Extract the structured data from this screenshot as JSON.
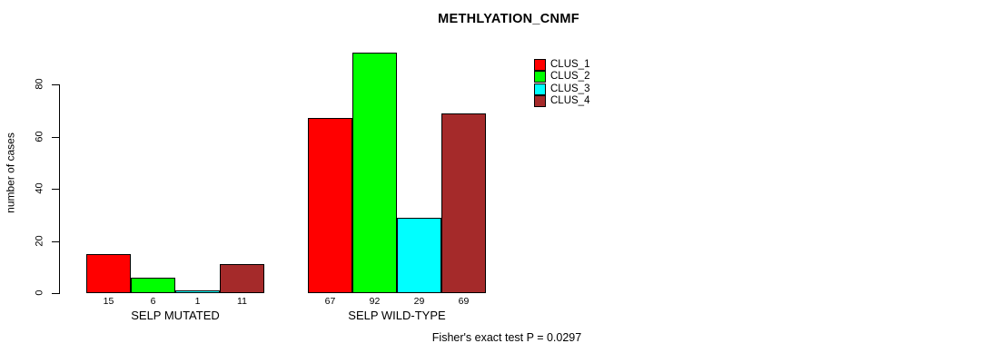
{
  "chart_data": {
    "type": "bar",
    "title": "METHLYATION_CNMF",
    "xlabel": "",
    "ylabel": "number of cases",
    "categories": [
      "SELP MUTATED",
      "SELP WILD-TYPE"
    ],
    "series": [
      {
        "name": "CLUS_1",
        "color": "#FF0000",
        "values": [
          15,
          67
        ]
      },
      {
        "name": "CLUS_2",
        "color": "#00FF00",
        "values": [
          6,
          92
        ]
      },
      {
        "name": "CLUS_3",
        "color": "#00FFFF",
        "values": [
          1,
          29
        ]
      },
      {
        "name": "CLUS_4",
        "color": "#A52A2A",
        "values": [
          11,
          69
        ]
      }
    ],
    "yticks": [
      0,
      20,
      40,
      60,
      80
    ],
    "ylim": [
      0,
      92
    ],
    "grid": false,
    "legend_position": "top-right",
    "bar_value_labels_shown": true,
    "annotation": "Fisher's exact test P = 0.0297"
  }
}
